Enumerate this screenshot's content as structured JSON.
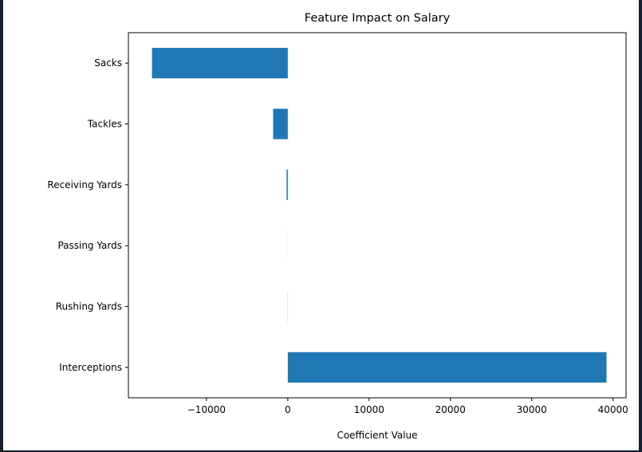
{
  "chart_data": {
    "type": "bar",
    "orientation": "horizontal",
    "title": "Feature Impact on Salary",
    "xlabel": "Coefficient Value",
    "ylabel": "",
    "categories": [
      "Interceptions",
      "Rushing Yards",
      "Passing Yards",
      "Receiving Yards",
      "Tackles",
      "Sacks"
    ],
    "values": [
      39200,
      15,
      5,
      -150,
      -1800,
      -16700
    ],
    "xlim": [
      -19600,
      41600
    ],
    "xticks": [
      -10000,
      0,
      10000,
      20000,
      30000,
      40000
    ],
    "xtick_labels": [
      "−10000",
      "0",
      "10000",
      "20000",
      "30000",
      "40000"
    ],
    "bar_color": "#1f77b4",
    "grid": false,
    "legend": "none"
  }
}
